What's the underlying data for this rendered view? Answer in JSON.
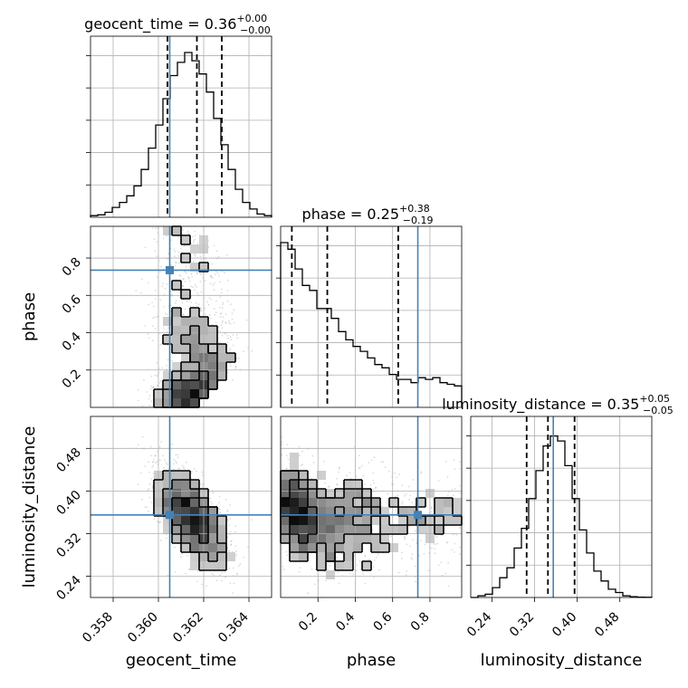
{
  "colors": {
    "truth": "#4682b4",
    "hist": "#000000",
    "grid": "#b0b0b0",
    "points": "#9a9a9a"
  },
  "chart_data": {
    "type": "corner",
    "parameters": [
      {
        "name": "geocent_time",
        "label": "geocent_time",
        "range": [
          0.357,
          0.365
        ],
        "ticks": [
          0.358,
          0.36,
          0.362,
          0.364
        ],
        "tick_labels": [
          "0.358",
          "0.360",
          "0.362",
          "0.364"
        ],
        "truth": 0.3605,
        "quantiles": [
          0.3604,
          0.3617,
          0.3628
        ],
        "mean": 0.3615,
        "sd": 0.00085,
        "title": {
          "main": "geocent_time = 0.36",
          "sup": "+0.00",
          "sub": "−0.00"
        }
      },
      {
        "name": "phase",
        "label": "phase",
        "range": [
          0.0,
          0.97
        ],
        "ticks": [
          0.2,
          0.4,
          0.6,
          0.8
        ],
        "tick_labels": [
          "0.2",
          "0.4",
          "0.6",
          "0.8"
        ],
        "truth": 0.735,
        "quantiles": [
          0.06,
          0.25,
          0.63
        ],
        "title": {
          "main": "phase = 0.25",
          "sup": "+0.38",
          "sub": "−0.19"
        }
      },
      {
        "name": "luminosity_distance",
        "label": "luminosity_distance",
        "range": [
          0.2,
          0.54
        ],
        "ticks": [
          0.24,
          0.32,
          0.4,
          0.48
        ],
        "tick_labels": [
          "0.24",
          "0.32",
          "0.40",
          "0.48"
        ],
        "truth": 0.355,
        "quantiles": [
          0.305,
          0.345,
          0.395
        ],
        "mean": 0.35,
        "sd": 0.05,
        "title": {
          "main": "luminosity_distance = 0.35",
          "sup": "+0.05",
          "sub": "−0.05"
        }
      }
    ],
    "histograms": {
      "geocent_time": [
        0.01,
        0.015,
        0.03,
        0.06,
        0.09,
        0.13,
        0.19,
        0.29,
        0.42,
        0.56,
        0.72,
        0.86,
        0.94,
        1.0,
        0.95,
        0.87,
        0.76,
        0.6,
        0.44,
        0.29,
        0.17,
        0.09,
        0.05,
        0.02,
        0.01
      ],
      "phase": [
        1.0,
        0.96,
        0.84,
        0.74,
        0.71,
        0.6,
        0.6,
        0.54,
        0.46,
        0.41,
        0.37,
        0.34,
        0.3,
        0.26,
        0.24,
        0.2,
        0.17,
        0.17,
        0.15,
        0.18,
        0.17,
        0.18,
        0.15,
        0.14,
        0.13
      ],
      "luminosity_distance": [
        0.0,
        0.01,
        0.02,
        0.06,
        0.12,
        0.18,
        0.3,
        0.42,
        0.6,
        0.77,
        0.92,
        0.98,
        0.95,
        0.8,
        0.6,
        0.41,
        0.27,
        0.16,
        0.1,
        0.05,
        0.03,
        0.01,
        0.005,
        0.002,
        0.001
      ]
    },
    "grid": true
  }
}
